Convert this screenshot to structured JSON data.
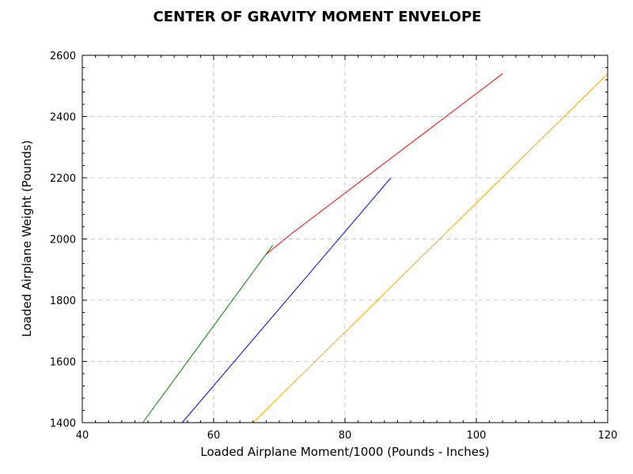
{
  "chart_data": {
    "type": "line",
    "title": "CENTER OF GRAVITY MOMENT ENVELOPE",
    "xlabel": "Loaded Airplane Moment/1000 (Pounds - Inches)",
    "ylabel": "Loaded Airplane Weight (Pounds)",
    "xlim": [
      40,
      120
    ],
    "ylim": [
      1400,
      2600
    ],
    "xticks": [
      40,
      60,
      80,
      100,
      120
    ],
    "yticks": [
      1400,
      1600,
      1800,
      2000,
      2200,
      2400,
      2600
    ],
    "grid": true,
    "series": [
      {
        "color": "#008000",
        "x": [
          49.2,
          69.0
        ],
        "y": [
          1400,
          1980
        ]
      },
      {
        "color": "#ff0000",
        "x": [
          68.0,
          72.0,
          76.0,
          80.0,
          84.0,
          88.0,
          92.0,
          96.0,
          100.0,
          104.0
        ],
        "y": [
          1950,
          2020,
          2085,
          2150,
          2215,
          2280,
          2345,
          2410,
          2475,
          2540
        ]
      },
      {
        "color": "#0000ff",
        "x": [
          55.2,
          87.0
        ],
        "y": [
          1400,
          2200
        ]
      },
      {
        "color": "#ffa500",
        "x": [
          66.0,
          120.0
        ],
        "y": [
          1400,
          2540
        ]
      }
    ]
  }
}
